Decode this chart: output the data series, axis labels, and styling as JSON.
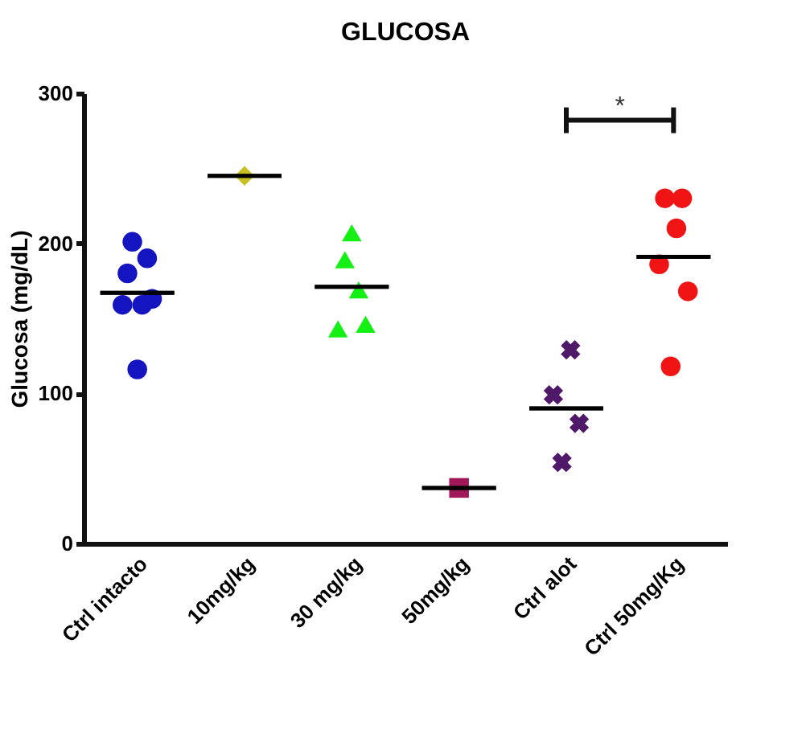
{
  "chart_data": {
    "type": "scatter",
    "title": "GLUCOSA",
    "ylabel": "Glucosa (mg/dL)",
    "categories": [
      "Ctrl intacto",
      "10mg/kg",
      "30 mg/kg",
      "50mg/kg",
      "Ctrl alot",
      "Ctrl 50mg/Kg"
    ],
    "ylim": [
      0,
      300
    ],
    "yticks": [
      0,
      100,
      200,
      300
    ],
    "annotations": [
      "*"
    ],
    "series": [
      {
        "marker": "circle",
        "color": "#1414c0",
        "x": [
          "Ctrl intacto",
          "Ctrl intacto",
          "Ctrl intacto",
          "Ctrl intacto",
          "Ctrl intacto",
          "Ctrl intacto",
          "Ctrl intacto"
        ],
        "values": [
          159,
          180,
          201,
          116,
          159,
          190,
          163
        ]
      },
      {
        "marker": "diamond",
        "color": "#c8c020",
        "x": [
          "10mg/kg"
        ],
        "values": [
          245
        ]
      },
      {
        "marker": "triangle",
        "color": "#14f014",
        "x": [
          "30 mg/kg",
          "30 mg/kg",
          "30 mg/kg",
          "30 mg/kg",
          "30 mg/kg"
        ],
        "values": [
          143,
          189,
          207,
          169,
          146
        ]
      },
      {
        "marker": "square",
        "color": "#a01858",
        "x": [
          "50mg/kg"
        ],
        "values": [
          37
        ]
      },
      {
        "marker": "cross",
        "color": "#501868",
        "x": [
          "Ctrl alot",
          "Ctrl alot",
          "Ctrl alot",
          "Ctrl alot"
        ],
        "values": [
          99,
          54,
          129,
          80
        ]
      },
      {
        "marker": "circle",
        "color": "#f01414",
        "x": [
          "Ctrl 50mg/Kg",
          "Ctrl 50mg/Kg",
          "Ctrl 50mg/Kg",
          "Ctrl 50mg/Kg",
          "Ctrl 50mg/Kg",
          "Ctrl 50mg/Kg"
        ],
        "values": [
          186,
          230,
          118,
          210,
          230,
          168
        ]
      },
      {
        "type": "box",
        "color": "#000000",
        "boxes": [
          {
            "low": 167,
            "q1": 167,
            "median": 167,
            "q3": 167,
            "high": 167
          },
          {
            "low": 245,
            "q1": 245,
            "median": 245,
            "q3": 245,
            "high": 245
          },
          {
            "low": 171,
            "q1": 171,
            "median": 171,
            "q3": 171,
            "high": 171
          },
          {
            "low": 37,
            "q1": 37,
            "median": 37,
            "q3": 37,
            "high": 37
          },
          {
            "low": 90,
            "q1": 90,
            "median": 90,
            "q3": 90,
            "high": 90
          },
          {
            "low": 191,
            "q1": 191,
            "median": 191,
            "q3": 191,
            "high": 191
          }
        ]
      }
    ]
  }
}
